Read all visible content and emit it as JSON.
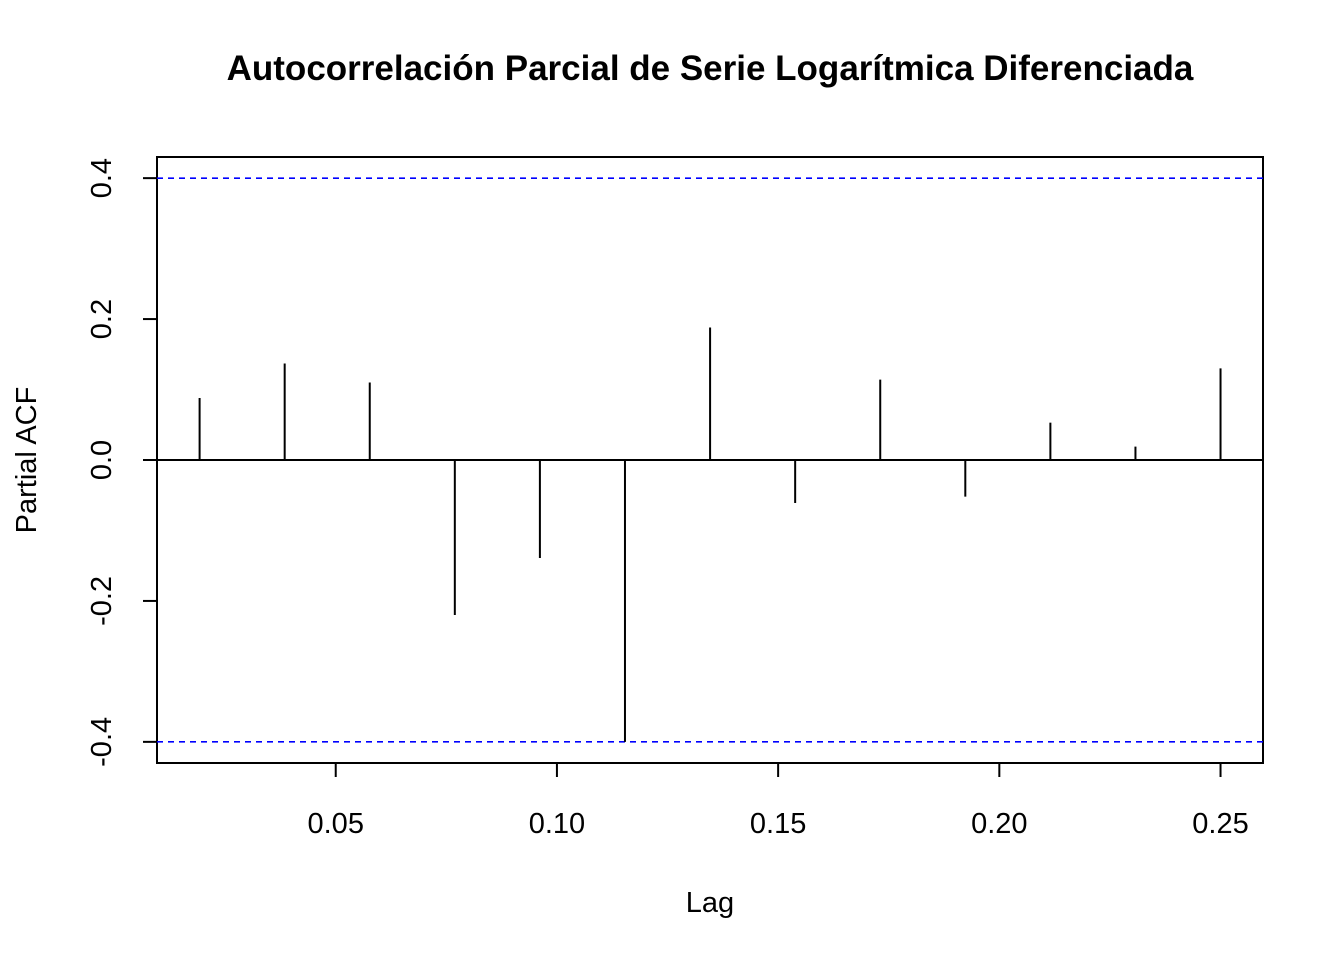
{
  "chart_data": {
    "type": "bar",
    "title": "Autocorrelación Parcial de Serie Logarítmica Diferenciada",
    "xlabel": "Lag",
    "ylabel": "Partial ACF",
    "x": [
      0.01923,
      0.03846,
      0.05769,
      0.07692,
      0.09615,
      0.11538,
      0.13462,
      0.15385,
      0.17308,
      0.19231,
      0.21154,
      0.23077,
      0.25
    ],
    "values": [
      0.088,
      0.137,
      0.11,
      -0.22,
      -0.139,
      -0.4,
      0.188,
      -0.061,
      0.114,
      -0.052,
      0.053,
      0.019,
      0.13
    ],
    "xlim": [
      0.0096,
      0.2596
    ],
    "ylim": [
      -0.43,
      0.43
    ],
    "xticks": [
      {
        "value": 0.05,
        "label": "0.05"
      },
      {
        "value": 0.1,
        "label": "0.10"
      },
      {
        "value": 0.15,
        "label": "0.15"
      },
      {
        "value": 0.2,
        "label": "0.20"
      },
      {
        "value": 0.25,
        "label": "0.25"
      }
    ],
    "yticks": [
      {
        "value": -0.4,
        "label": "-0.4"
      },
      {
        "value": -0.2,
        "label": "-0.2"
      },
      {
        "value": 0.0,
        "label": "0.0"
      },
      {
        "value": 0.2,
        "label": "0.2"
      },
      {
        "value": 0.4,
        "label": "0.4"
      }
    ],
    "confidence_bound": 0.4,
    "zero_line": true,
    "grid": false,
    "colors": {
      "spike": "#000000",
      "confidence": "#0000ff",
      "axis": "#000000"
    }
  }
}
